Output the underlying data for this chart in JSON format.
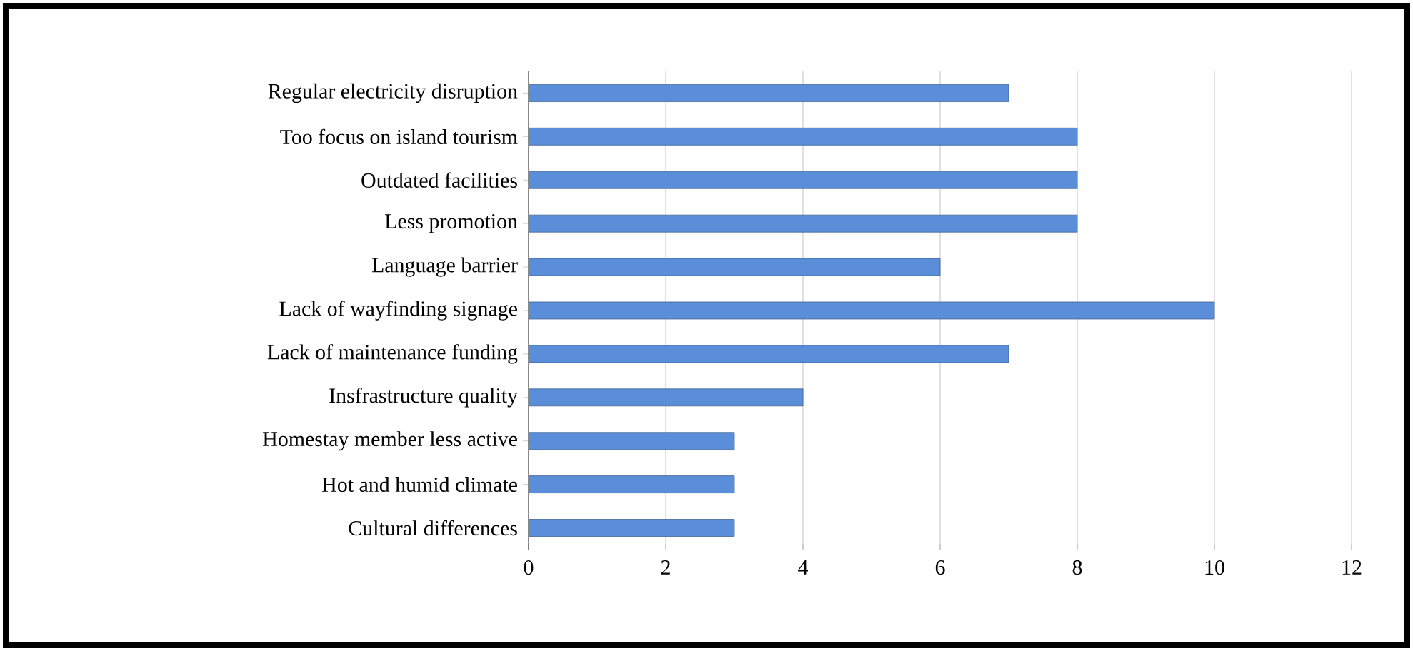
{
  "chart_data": {
    "type": "bar",
    "orientation": "horizontal",
    "categories": [
      "Regular electricity disruption",
      "Too focus on island tourism",
      "Outdated facilities",
      "Less promotion",
      "Language barrier",
      "Lack of wayfinding signage",
      "Lack of maintenance funding",
      "Insfrastructure quality",
      "Homestay member less active",
      "Hot and humid climate",
      "Cultural differences"
    ],
    "values": [
      7,
      8,
      8,
      8,
      6,
      10,
      7,
      4,
      3,
      3,
      3
    ],
    "color": "#5b8ed8",
    "xlim": [
      0,
      12
    ],
    "xticks": [
      0,
      2,
      4,
      6,
      8,
      10,
      12
    ],
    "grid": "x"
  }
}
